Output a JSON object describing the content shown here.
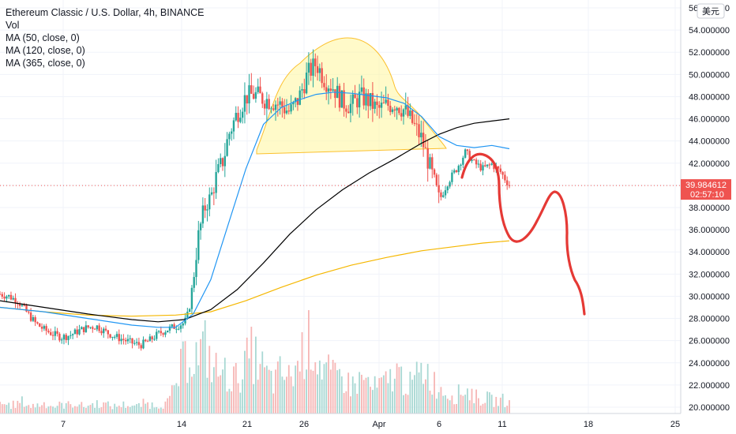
{
  "chart_data": {
    "type": "candlestick",
    "title": "Ethereum Classic / U.S. Dollar, 4h, BINANCE",
    "indicators": [
      "Vol",
      "MA (50, close, 0)",
      "MA (120, close, 0)",
      "MA (365, close, 0)"
    ],
    "currency_label": "美元",
    "y_ticks": [
      "56.000000",
      "54.000000",
      "52.000000",
      "50.000000",
      "48.000000",
      "46.000000",
      "44.000000",
      "42.000000",
      "40.000000",
      "38.000000",
      "36.000000",
      "34.000000",
      "32.000000",
      "30.000000",
      "28.000000",
      "26.000000",
      "24.000000",
      "22.000000",
      "20.000000"
    ],
    "y_values": [
      56,
      54,
      52,
      50,
      48,
      46,
      44,
      42,
      40,
      38,
      36,
      34,
      32,
      30,
      28,
      26,
      24,
      22,
      20
    ],
    "x_ticks": [
      "7",
      "14",
      "21",
      "26",
      "Apr",
      "6",
      "11",
      "18",
      "25"
    ],
    "last_price": "39.984612",
    "countdown": "02:57:10",
    "price_path": [
      [
        0,
        30.2
      ],
      [
        2,
        30.0
      ],
      [
        4,
        29.6
      ],
      [
        6,
        28.6
      ],
      [
        8,
        27.6
      ],
      [
        10,
        27.0
      ],
      [
        12,
        26.6
      ],
      [
        14,
        26.3
      ],
      [
        16,
        26.5
      ],
      [
        18,
        26.9
      ],
      [
        20,
        27.2
      ],
      [
        22,
        27.3
      ],
      [
        24,
        26.8
      ],
      [
        26,
        26.4
      ],
      [
        28,
        26.1
      ],
      [
        30,
        25.8
      ],
      [
        32,
        25.6
      ],
      [
        34,
        26.0
      ],
      [
        36,
        26.6
      ],
      [
        38,
        27.0
      ],
      [
        40,
        27.3
      ],
      [
        42,
        27.6
      ],
      [
        43,
        28.6
      ],
      [
        44,
        31.5
      ],
      [
        45,
        35.0
      ],
      [
        46,
        37.0
      ],
      [
        47,
        38.5
      ],
      [
        48,
        38.8
      ],
      [
        49,
        40.5
      ],
      [
        50,
        41.5
      ],
      [
        51,
        42.5
      ],
      [
        52,
        44.5
      ],
      [
        54,
        46.5
      ],
      [
        56,
        48.0
      ],
      [
        58,
        48.2
      ],
      [
        60,
        47.8
      ],
      [
        62,
        47.6
      ],
      [
        64,
        47.2
      ],
      [
        66,
        46.6
      ],
      [
        68,
        47.8
      ],
      [
        70,
        50.0
      ],
      [
        72,
        51.0
      ],
      [
        74,
        49.5
      ],
      [
        76,
        48.8
      ],
      [
        78,
        47.5
      ],
      [
        80,
        47.2
      ],
      [
        82,
        48.0
      ],
      [
        84,
        47.6
      ],
      [
        86,
        46.8
      ],
      [
        88,
        47.2
      ],
      [
        90,
        47.4
      ],
      [
        92,
        46.8
      ],
      [
        94,
        45.6
      ],
      [
        96,
        44.2
      ],
      [
        98,
        41.5
      ],
      [
        100,
        38.6
      ],
      [
        102,
        40.3
      ],
      [
        104,
        41.5
      ],
      [
        106,
        43.0
      ],
      [
        108,
        42.0
      ],
      [
        110,
        41.5
      ],
      [
        112,
        41.9
      ],
      [
        114,
        41.2
      ],
      [
        116,
        40.0
      ]
    ],
    "volume_path": [
      0.6,
      0.5,
      0.5,
      0.7,
      0.4,
      0.5,
      0.6,
      0.4,
      0.5,
      0.5,
      0.6,
      0.4,
      0.5,
      0.6,
      0.5,
      0.4,
      0.5,
      0.5,
      0.4,
      0.6,
      0.5,
      0.5,
      0.6,
      1.4,
      2.8,
      3.6,
      3.2,
      3.8,
      2.6,
      2.4,
      2.2,
      2.0,
      2.6,
      3.4,
      3.0,
      2.2,
      1.8,
      2.4,
      2.0,
      2.6,
      3.8,
      4.2,
      3.0,
      2.4,
      2.0,
      2.2,
      1.6,
      1.8,
      2.0,
      1.4,
      1.6,
      1.8,
      2.4,
      2.0,
      1.6,
      2.2,
      2.6,
      1.8,
      1.4,
      1.2,
      1.0,
      1.4,
      1.2,
      0.8,
      0.9,
      0.7,
      0.8,
      0.6
    ],
    "ma50": [
      [
        0,
        29.0
      ],
      [
        10,
        28.6
      ],
      [
        20,
        28.0
      ],
      [
        30,
        27.4
      ],
      [
        36,
        27.2
      ],
      [
        40,
        27.2
      ],
      [
        44,
        28.4
      ],
      [
        48,
        31.5
      ],
      [
        52,
        36.5
      ],
      [
        56,
        41.5
      ],
      [
        60,
        45.5
      ],
      [
        64,
        47.0
      ],
      [
        68,
        47.7
      ],
      [
        72,
        48.2
      ],
      [
        76,
        48.4
      ],
      [
        80,
        48.3
      ],
      [
        84,
        48.1
      ],
      [
        88,
        47.9
      ],
      [
        92,
        47.4
      ],
      [
        96,
        46.2
      ],
      [
        100,
        44.4
      ],
      [
        104,
        43.6
      ],
      [
        108,
        43.4
      ],
      [
        112,
        43.6
      ],
      [
        116,
        43.3
      ]
    ],
    "ma120": [
      [
        0,
        29.6
      ],
      [
        10,
        29.0
      ],
      [
        20,
        28.4
      ],
      [
        30,
        27.9
      ],
      [
        36,
        27.7
      ],
      [
        42,
        27.9
      ],
      [
        48,
        28.8
      ],
      [
        54,
        30.6
      ],
      [
        60,
        33.0
      ],
      [
        66,
        35.6
      ],
      [
        72,
        37.8
      ],
      [
        78,
        39.6
      ],
      [
        84,
        41.1
      ],
      [
        90,
        42.4
      ],
      [
        96,
        43.8
      ],
      [
        100,
        44.6
      ],
      [
        104,
        45.2
      ],
      [
        108,
        45.6
      ],
      [
        112,
        45.8
      ],
      [
        116,
        46.0
      ]
    ],
    "ma365": [
      [
        0,
        29.0
      ],
      [
        10,
        28.6
      ],
      [
        20,
        28.3
      ],
      [
        30,
        28.2
      ],
      [
        40,
        28.3
      ],
      [
        48,
        28.6
      ],
      [
        56,
        29.6
      ],
      [
        64,
        30.8
      ],
      [
        72,
        31.9
      ],
      [
        80,
        32.8
      ],
      [
        88,
        33.5
      ],
      [
        96,
        34.1
      ],
      [
        104,
        34.5
      ],
      [
        110,
        34.8
      ],
      [
        116,
        35.0
      ]
    ],
    "drawings": {
      "head_shoulders_fill": "#fff59d",
      "head_shoulders_stroke": "#fbc02d",
      "projection_color": "#e53935"
    },
    "colors": {
      "up": "#26a69a",
      "down": "#ef5350",
      "ma50": "#2196f3",
      "ma120": "#000000",
      "ma365": "#f5b700"
    }
  }
}
